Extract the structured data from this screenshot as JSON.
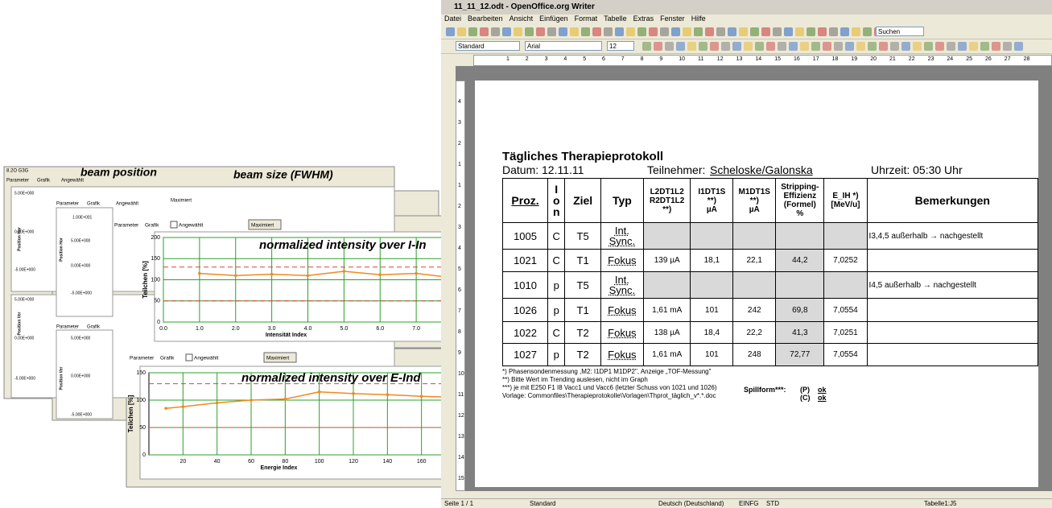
{
  "collage": {
    "texts": [
      "8.2O G3G",
      "beam position",
      "beam size (FWHM)",
      "Parameter",
      "Grafik",
      "Angewählt",
      "Position Hor",
      "5.00E+000",
      "0.00E+000",
      "-5.00E+000",
      "Position Ver",
      "5.00E+000",
      "0.00E+000",
      "-5.00E+000",
      "Parameter",
      "Grafik",
      "Angewählt",
      "Maximiert",
      "Position Hor",
      "1.00E+001",
      "5.00E+000",
      "0.00E+000",
      "-5.00E+000",
      "Parameter",
      "Grafik",
      "Position Ver",
      "5.00E+000",
      "0.00E+000",
      "-5.00E+000"
    ],
    "tabs": [
      "Parameter",
      "Grafik",
      "Angewählt",
      "Maximiert"
    ]
  },
  "charts": [
    {
      "type": "line",
      "title": "normalized intensity over I-In",
      "ylabel": "Teilchen [%]",
      "xlabel": "Intensität Index",
      "x": [
        1,
        2,
        3,
        4,
        5,
        6,
        7,
        8
      ],
      "values": [
        115,
        110,
        113,
        110,
        120,
        112,
        115,
        105
      ],
      "color": "#f08a1c",
      "xlim": [
        0,
        8
      ],
      "ylim": [
        0,
        200
      ],
      "xticks": [
        {
          "value": 0,
          "label": "0.0"
        },
        {
          "value": 1,
          "label": "1.0"
        },
        {
          "value": 2,
          "label": "2.0"
        },
        {
          "value": 3,
          "label": "3.0"
        },
        {
          "value": 4,
          "label": "4.0"
        },
        {
          "value": 5,
          "label": "5.0"
        },
        {
          "value": 6,
          "label": "6.0"
        },
        {
          "value": 7,
          "label": "7.0"
        }
      ],
      "yticks": [
        0,
        50,
        100,
        150,
        200
      ],
      "thresholds": [
        130,
        50
      ],
      "grid": true
    },
    {
      "type": "line",
      "title": "normalized intensity over E-Ind",
      "ylabel": "Teilchen [%]",
      "xlabel": "Energie Index",
      "x": [
        10,
        20,
        40,
        60,
        80,
        100,
        120,
        140,
        160,
        180
      ],
      "values": [
        85,
        88,
        95,
        100,
        102,
        115,
        112,
        110,
        107,
        105
      ],
      "color": "#f08a1c",
      "xlim": [
        0,
        180
      ],
      "ylim": [
        0,
        150
      ],
      "xticks": [
        20,
        40,
        60,
        80,
        100,
        120,
        140,
        160,
        180
      ],
      "yticks": [
        0,
        50,
        100,
        150
      ],
      "thresholds": [
        130,
        50
      ],
      "grid": true
    }
  ],
  "window": {
    "title": "11_11_12.odt - OpenOffice.org Writer",
    "menu": [
      "Datei",
      "Bearbeiten",
      "Ansicht",
      "Einfügen",
      "Format",
      "Tabelle",
      "Extras",
      "Fenster",
      "Hilfe"
    ],
    "style_box": "Standard",
    "font_box": "Arial",
    "size_box": "12",
    "search_box": "Suchen",
    "ruler": [
      "1",
      "2",
      "3",
      "4",
      "5",
      "6",
      "7",
      "8",
      "9",
      "10",
      "11",
      "12",
      "13",
      "14",
      "15",
      "16",
      "17",
      "18",
      "19",
      "20",
      "21",
      "22",
      "23",
      "24",
      "25",
      "26",
      "27",
      "28"
    ],
    "vruler": [
      "4",
      "3",
      "2",
      "1",
      "1",
      "2",
      "3",
      "4",
      "5",
      "6",
      "7",
      "8",
      "9",
      "10",
      "11",
      "12",
      "13",
      "14",
      "15"
    ]
  },
  "document": {
    "heading": "Tägliches Therapieprotokoll",
    "date": "Datum: 12.11.11",
    "participants_label": "Teilnehmer:",
    "participants": "Scheloske/Galonska",
    "time": "Uhrzeit: 05:30 Uhr",
    "table": {
      "headers": [
        "Proz.",
        "I\no\nn",
        "Ziel",
        "Typ",
        "L2DT1L2\nR2DT1L2\n**)",
        "I1DT1S\n**)\nµA",
        "M1DT1S\n**)\nµA",
        "Stripping-\nEffizienz\n(Formel)\n%",
        "E_IH *)\n[MeV/u]",
        "Bemerkungen"
      ],
      "rows": [
        [
          "1005",
          "C",
          "T5",
          "Int.\nSync.",
          null,
          null,
          null,
          null,
          null,
          "I3,4,5 außerhalb → nachgestellt"
        ],
        [
          "1021",
          "C",
          "T1",
          "Fokus",
          "139 µA",
          "18,1",
          "22,1",
          "44,2",
          "7,0252",
          null
        ],
        [
          "1010",
          "p",
          "T5",
          "Int.\nSync.",
          null,
          null,
          null,
          null,
          null,
          "I4,5 außerhalb → nachgestellt"
        ],
        [
          "1026",
          "p",
          "T1",
          "Fokus",
          "1,61 mA",
          "101",
          "242",
          "69,8",
          "7,0554",
          null
        ],
        [
          "1022",
          "C",
          "T2",
          "Fokus",
          "138 µA",
          "18,4",
          "22,2",
          "41,3",
          "7,0251",
          null
        ],
        [
          "1027",
          "p",
          "T2",
          "Fokus",
          "1,61 mA",
          "101",
          "248",
          "72,77",
          "7,0554",
          null
        ]
      ]
    },
    "footnotes": [
      "*) Phasensondenmessung ,M2: I1DP1 M1DP2\", Anzeige „TOF-Messung\"",
      "**) Bitte Wert im Trending auslesen, nicht im Graph",
      "***) je mit E250 F1 I8 Vacc1 und Vacc6 (letzter Schuss von 1021 und 1026)",
      "Vorlage: Commonfiles\\Therapieprotokolle\\Vorlagen\\Thprot_täglich_v*.*.doc"
    ],
    "spillform": {
      "label": "Spillform***:",
      "p": "(P)",
      "p_status": "ok",
      "c": "(C)",
      "c_status": "ok"
    }
  },
  "status_bar": [
    "Seite 1 / 1",
    "Standard",
    "Deutsch (Deutschland)",
    "EINFG",
    "STD",
    "Tabelle1:J5"
  ]
}
